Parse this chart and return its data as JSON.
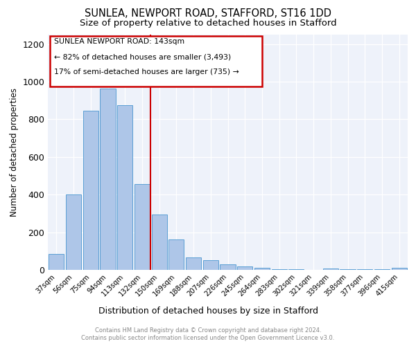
{
  "title1": "SUNLEA, NEWPORT ROAD, STAFFORD, ST16 1DD",
  "title2": "Size of property relative to detached houses in Stafford",
  "xlabel": "Distribution of detached houses by size in Stafford",
  "ylabel": "Number of detached properties",
  "categories": [
    "37sqm",
    "56sqm",
    "75sqm",
    "94sqm",
    "113sqm",
    "132sqm",
    "150sqm",
    "169sqm",
    "188sqm",
    "207sqm",
    "226sqm",
    "245sqm",
    "264sqm",
    "283sqm",
    "302sqm",
    "321sqm",
    "339sqm",
    "358sqm",
    "377sqm",
    "396sqm",
    "415sqm"
  ],
  "values": [
    85,
    400,
    845,
    965,
    875,
    455,
    295,
    160,
    65,
    50,
    30,
    20,
    12,
    5,
    5,
    0,
    8,
    4,
    3,
    3,
    12
  ],
  "bar_color": "#aec6e8",
  "bar_edge_color": "#5a9fd4",
  "vline_x": 5.5,
  "vline_color": "#cc0000",
  "vline_label": "SUNLEA NEWPORT ROAD: 143sqm",
  "annotation_line1": "← 82% of detached houses are smaller (3,493)",
  "annotation_line2": "17% of semi-detached houses are larger (735) →",
  "box_color": "#cc0000",
  "ylim": [
    0,
    1250
  ],
  "yticks": [
    0,
    200,
    400,
    600,
    800,
    1000,
    1200
  ],
  "footnote1": "Contains HM Land Registry data © Crown copyright and database right 2024.",
  "footnote2": "Contains public sector information licensed under the Open Government Licence v3.0.",
  "bg_color": "#eef2fa",
  "title1_fontsize": 10.5,
  "title2_fontsize": 9.5
}
